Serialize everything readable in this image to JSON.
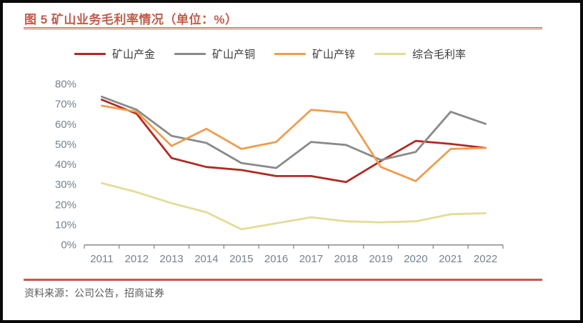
{
  "header": {
    "title": "图 5 矿山业务毛利率情况（单位：%）"
  },
  "footer": {
    "source": "资料来源：公司公告，招商证券"
  },
  "colors": {
    "accent_rule": "#C25B4A",
    "title_text": "#C25B4A",
    "axis_text": "#76828E",
    "axis_line": "#8A8A8A",
    "legend_text": "#3A3A3A",
    "source_text": "#595959",
    "frame_border": "#0A0A0A",
    "series_gold": "#B02A23",
    "series_copper": "#8A8A8A",
    "series_zinc": "#EE9D4F",
    "series_overall": "#E3DC96"
  },
  "chart_data": {
    "type": "line",
    "title": "图 5 矿山业务毛利率情况（单位：%）",
    "categories": [
      "2011",
      "2012",
      "2013",
      "2014",
      "2015",
      "2016",
      "2017",
      "2018",
      "2019",
      "2020",
      "2021",
      "2022"
    ],
    "series": [
      {
        "name": "矿山产金",
        "color": "#B02A23",
        "values": [
          72,
          65,
          43,
          38.5,
          37,
          34,
          34,
          31,
          41.5,
          51.5,
          50,
          48
        ]
      },
      {
        "name": "矿山产铜",
        "color": "#8A8A8A",
        "values": [
          73.5,
          67,
          54,
          50.5,
          40.5,
          38,
          51,
          49.5,
          42,
          46,
          66,
          60
        ]
      },
      {
        "name": "矿山产锌",
        "color": "#EE9D4F",
        "values": [
          69,
          66,
          49,
          57.5,
          47.5,
          51,
          67,
          65.5,
          38.5,
          31.5,
          47.5,
          48
        ]
      },
      {
        "name": "综合毛利率",
        "color": "#E3DC96",
        "values": [
          30.5,
          26,
          20.5,
          16,
          7.5,
          10.5,
          13.5,
          11.5,
          11,
          11.5,
          15,
          15.5
        ]
      }
    ],
    "xlabel": "",
    "ylabel": "",
    "ylim": [
      0,
      80
    ],
    "y_tick_values": [
      0,
      10,
      20,
      30,
      40,
      50,
      60,
      70,
      80
    ],
    "y_tick_labels": [
      "0%",
      "10%",
      "20%",
      "30%",
      "40%",
      "50%",
      "60%",
      "70%",
      "80%"
    ],
    "grid": false,
    "legend_position": "top"
  }
}
